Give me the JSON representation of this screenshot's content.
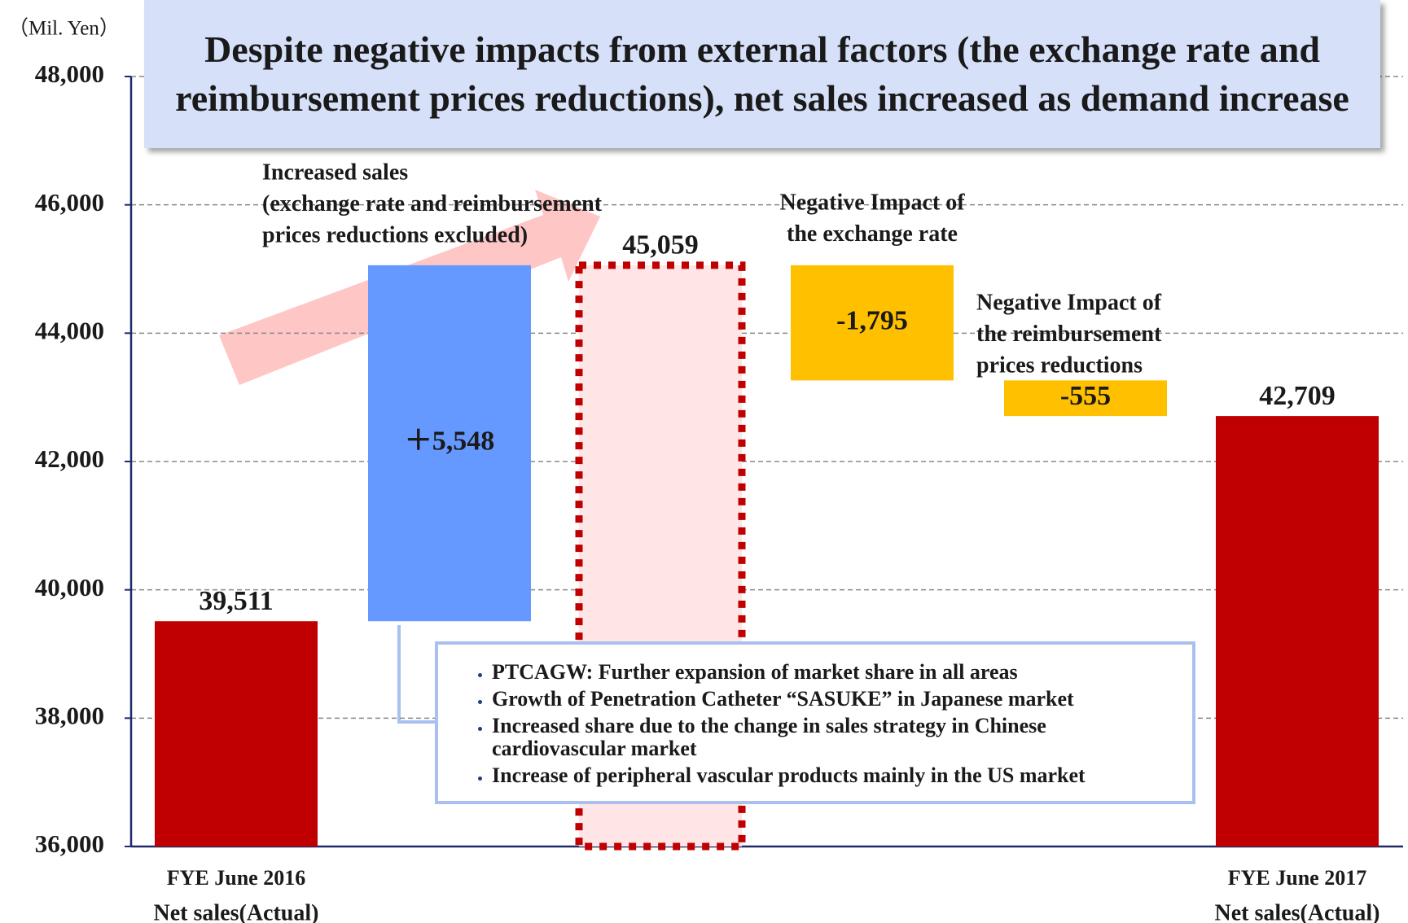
{
  "chart_data": {
    "type": "waterfall",
    "title": "Despite negative impacts from external factors (the exchange rate and reimbursement prices reductions), net sales increased as demand increase",
    "y_unit_label": "（Mil. Yen）",
    "categories": [
      "FYE June 2016",
      null,
      null,
      null,
      null,
      "FYE June 2017"
    ],
    "category_sublabels": [
      "Net sales(Actual)",
      null,
      null,
      null,
      null,
      "Net sales(Actual)"
    ],
    "measure": [
      "absolute",
      "relative",
      "total",
      "relative",
      "relative",
      "total"
    ],
    "values": [
      39511,
      5548,
      45059,
      -1795,
      -555,
      42709
    ],
    "value_labels": [
      "39,511",
      "＋5,548",
      "45,059",
      "-1,795",
      "-555",
      "42,709"
    ],
    "label_position": [
      "above",
      "inside",
      "above",
      "inside",
      "inside",
      "above"
    ],
    "colors": [
      "#c00000",
      "#6699ff",
      "#ffe5e5",
      "#ffc000",
      "#ffc000",
      "#c00000"
    ],
    "borders": [
      null,
      null,
      "#c00000",
      null,
      null,
      null
    ],
    "ylim": [
      36000,
      48000
    ],
    "yticks": [
      {
        "value": 36000,
        "label": "36,000"
      },
      {
        "value": 38000,
        "label": "38,000"
      },
      {
        "value": 40000,
        "label": "40,000"
      },
      {
        "value": 42000,
        "label": "42,000"
      },
      {
        "value": 44000,
        "label": "44,000"
      },
      {
        "value": 46000,
        "label": "46,000"
      },
      {
        "value": 48000,
        "label": "48,000"
      }
    ],
    "grid": true,
    "annotations": [
      {
        "lines": [
          "Increased sales",
          "(exchange rate and reimbursement",
          "prices reductions excluded)"
        ]
      },
      {
        "lines": [
          "Negative Impact of",
          "the exchange rate"
        ]
      },
      {
        "lines": [
          "Negative Impact of",
          "the reimbursement",
          "prices reductions"
        ]
      }
    ],
    "bullets": [
      "PTCAGW: Further expansion of market share in all areas",
      "Growth of Penetration Catheter “SASUKE” in Japanese market",
      "Increased share due to the change in sales strategy in Chinese cardiovascular market",
      "Increase of peripheral vascular products mainly in the US market"
    ]
  }
}
